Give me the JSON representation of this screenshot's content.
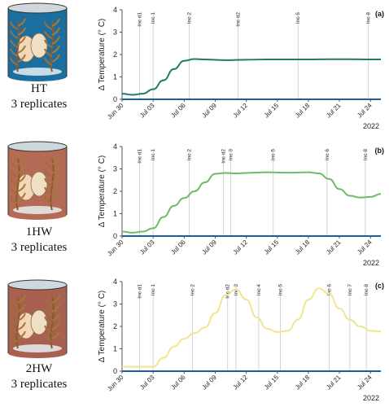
{
  "panels": [
    {
      "tag": "(a)",
      "label_line1": "HT",
      "label_line2": "3 replicates",
      "cyl_color": "#1b6e9e",
      "line_color": "#1f7a6a",
      "markers": [
        {
          "label": "Inc d1",
          "x": 1.7
        },
        {
          "label": "Inc 1",
          "x": 3.0
        },
        {
          "label": "Inc 2",
          "x": 6.5
        },
        {
          "label": "Inc d2",
          "x": 11.2
        },
        {
          "label": "Inc 5",
          "x": 17.0
        },
        {
          "label": "Inc 8",
          "x": 23.8
        }
      ]
    },
    {
      "tag": "(b)",
      "label_line1": "1HW",
      "label_line2": "3 replicates",
      "cyl_color": "#b56a55",
      "line_color": "#6dbb67",
      "markers": [
        {
          "label": "Inc d1",
          "x": 1.7
        },
        {
          "label": "Inc 1",
          "x": 3.0
        },
        {
          "label": "Inc 2",
          "x": 6.5
        },
        {
          "label": "Inc d2",
          "x": 9.8
        },
        {
          "label": "Inc 3",
          "x": 10.5
        },
        {
          "label": "Inc 5",
          "x": 14.6
        },
        {
          "label": "Inc 6",
          "x": 19.8
        },
        {
          "label": "Inc 8",
          "x": 23.5
        }
      ]
    },
    {
      "tag": "(c)",
      "label_line1": "2HW",
      "label_line2": "3 replicates",
      "cyl_color": "#a8604f",
      "line_color": "#f0e68c",
      "markers": [
        {
          "label": "Inc d1",
          "x": 1.7
        },
        {
          "label": "Inc 1",
          "x": 3.0
        },
        {
          "label": "Inc 2",
          "x": 6.8
        },
        {
          "label": "Inc d2",
          "x": 10.2
        },
        {
          "label": "Inc 3",
          "x": 11.0
        },
        {
          "label": "Inc 4",
          "x": 13.2
        },
        {
          "label": "Inc 5",
          "x": 15.3
        },
        {
          "label": "Inc 6",
          "x": 20.0
        },
        {
          "label": "Inc 7",
          "x": 22.0
        },
        {
          "label": "Inc 8",
          "x": 23.6
        }
      ]
    }
  ],
  "chart_data": [
    {
      "type": "line",
      "ylabel": "Δ Temperature (° C)",
      "year_label": "2022",
      "ylim": [
        0,
        4
      ],
      "yticks": [
        0,
        1,
        2,
        3,
        4
      ],
      "xlim": [
        0,
        25
      ],
      "xtick_values": [
        0,
        3,
        6,
        9,
        12,
        15,
        18,
        21,
        24
      ],
      "xtick_labels": [
        "Jun 30",
        "Jul 03",
        "Jul 06",
        "Jul 09",
        "Jul 12",
        "Jul 15",
        "Jul 18",
        "Jul 21",
        "Jul 24"
      ],
      "series": [
        {
          "values_x": [
            0,
            1,
            2,
            3,
            4,
            5,
            6,
            7,
            8,
            10,
            12,
            14,
            16,
            18,
            20,
            22,
            24,
            25
          ],
          "values_y": [
            0.25,
            0.2,
            0.25,
            0.45,
            0.85,
            1.35,
            1.72,
            1.8,
            1.78,
            1.75,
            1.77,
            1.78,
            1.78,
            1.78,
            1.79,
            1.79,
            1.78,
            1.78
          ]
        }
      ]
    },
    {
      "type": "line",
      "ylabel": "Δ Temperature (° C)",
      "year_label": "2022",
      "ylim": [
        0,
        4
      ],
      "yticks": [
        0,
        1,
        2,
        3,
        4
      ],
      "xlim": [
        0,
        25
      ],
      "xtick_values": [
        0,
        3,
        6,
        9,
        12,
        15,
        18,
        21,
        24
      ],
      "xtick_labels": [
        "Jun 30",
        "Jul 03",
        "Jul 06",
        "Jul 09",
        "Jul 12",
        "Jul 15",
        "Jul 18",
        "Jul 21",
        "Jul 24"
      ],
      "series": [
        {
          "values_x": [
            0,
            1,
            2,
            3,
            4,
            5,
            6,
            7,
            8,
            9,
            10,
            11,
            12,
            14,
            16,
            18,
            19,
            20,
            21,
            22,
            23,
            24,
            25
          ],
          "values_y": [
            0.2,
            0.15,
            0.2,
            0.35,
            0.85,
            1.35,
            1.7,
            2.0,
            2.4,
            2.78,
            2.82,
            2.8,
            2.82,
            2.85,
            2.83,
            2.85,
            2.8,
            2.55,
            2.1,
            1.8,
            1.72,
            1.75,
            1.88
          ]
        }
      ]
    },
    {
      "type": "line",
      "ylabel": "Δ Temperature (° C)",
      "year_label": "2022",
      "ylim": [
        0,
        4
      ],
      "yticks": [
        0,
        1,
        2,
        3,
        4
      ],
      "xlim": [
        0,
        25
      ],
      "xtick_values": [
        0,
        3,
        6,
        9,
        12,
        15,
        18,
        21,
        24
      ],
      "xtick_labels": [
        "Jun 30",
        "Jul 03",
        "Jul 06",
        "Jul 09",
        "Jul 12",
        "Jul 15",
        "Jul 18",
        "Jul 21",
        "Jul 24"
      ],
      "series": [
        {
          "values_x": [
            0,
            1,
            2,
            3,
            4,
            5,
            6,
            7,
            8,
            9,
            10,
            11,
            12,
            13,
            14,
            15,
            16,
            17,
            18,
            19,
            20,
            21,
            22,
            23,
            24,
            25
          ],
          "values_y": [
            0.2,
            0.2,
            0.2,
            0.2,
            0.6,
            1.1,
            1.45,
            1.7,
            1.95,
            2.6,
            3.4,
            3.65,
            3.2,
            2.4,
            1.9,
            1.75,
            1.8,
            2.3,
            3.2,
            3.7,
            3.45,
            2.8,
            2.3,
            2.0,
            1.8,
            1.78
          ]
        }
      ]
    }
  ]
}
